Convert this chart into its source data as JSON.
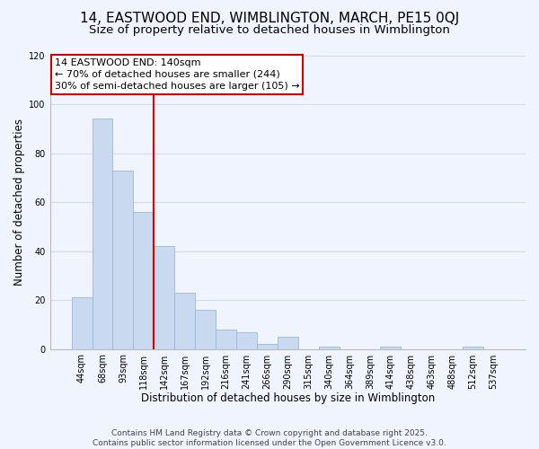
{
  "title": "14, EASTWOOD END, WIMBLINGTON, MARCH, PE15 0QJ",
  "subtitle": "Size of property relative to detached houses in Wimblington",
  "xlabel": "Distribution of detached houses by size in Wimblington",
  "ylabel": "Number of detached properties",
  "bar_labels": [
    "44sqm",
    "68sqm",
    "93sqm",
    "118sqm",
    "142sqm",
    "167sqm",
    "192sqm",
    "216sqm",
    "241sqm",
    "266sqm",
    "290sqm",
    "315sqm",
    "340sqm",
    "364sqm",
    "389sqm",
    "414sqm",
    "438sqm",
    "463sqm",
    "488sqm",
    "512sqm",
    "537sqm"
  ],
  "bar_values": [
    21,
    94,
    73,
    56,
    42,
    23,
    16,
    8,
    7,
    2,
    5,
    0,
    1,
    0,
    0,
    1,
    0,
    0,
    0,
    1,
    0
  ],
  "bar_color": "#c8d9f0",
  "bar_edge_color": "#9ab8d8",
  "vline_color": "#cc0000",
  "annotation_lines": [
    "14 EASTWOOD END: 140sqm",
    "← 70% of detached houses are smaller (244)",
    "30% of semi-detached houses are larger (105) →"
  ],
  "annotation_box_color": "#cc0000",
  "ylim": [
    0,
    120
  ],
  "yticks": [
    0,
    20,
    40,
    60,
    80,
    100,
    120
  ],
  "grid_color": "#d0dcea",
  "background_color": "#f0f4ff",
  "footer_lines": [
    "Contains HM Land Registry data © Crown copyright and database right 2025.",
    "Contains public sector information licensed under the Open Government Licence v3.0."
  ],
  "title_fontsize": 11,
  "subtitle_fontsize": 9.5,
  "axis_label_fontsize": 8.5,
  "tick_fontsize": 7,
  "annotation_fontsize": 8,
  "footer_fontsize": 6.5
}
